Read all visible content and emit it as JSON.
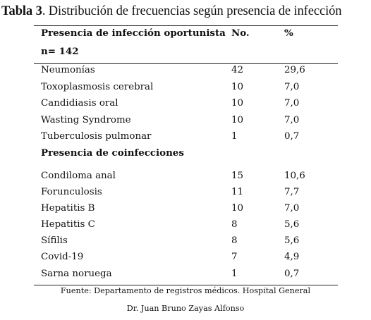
{
  "title": {
    "bold": "Tabla 3",
    "rest": ". Distribución de frecuencias según presencia de infección"
  },
  "table": {
    "header": {
      "col1_line1": "Presencia de infección oportunista",
      "col1_line2": "n= 142",
      "col2": "No.",
      "col3": "%"
    },
    "section1_rows": [
      {
        "label": "Neumonías",
        "no": "42",
        "pct": "29,6"
      },
      {
        "label": "Toxoplasmosis cerebral",
        "no": "10",
        "pct": "7,0"
      },
      {
        "label": "Candidiasis oral",
        "no": "10",
        "pct": "7,0"
      },
      {
        "label": "Wasting Syndrome",
        "no": "10",
        "pct": "7,0"
      },
      {
        "label": "Tuberculosis pulmonar",
        "no": "1",
        "pct": "0,7"
      }
    ],
    "section2_title": "Presencia de coinfecciones",
    "section2_rows": [
      {
        "label": "Condiloma anal",
        "no": "15",
        "pct": "10,6"
      },
      {
        "label": "Forunculosis",
        "no": "11",
        "pct": "7,7"
      },
      {
        "label": "Hepatitis B",
        "no": "10",
        "pct": "7,0"
      },
      {
        "label": "Hepatitis C",
        "no": "8",
        "pct": "5,6"
      },
      {
        "label": "Sífilis",
        "no": "8",
        "pct": "5,6"
      },
      {
        "label": "Covid-19",
        "no": "7",
        "pct": "4,9"
      },
      {
        "label": "Sarna noruega",
        "no": "1",
        "pct": "0,7"
      }
    ]
  },
  "source": {
    "line1": "Fuente: Departamento de registros médicos. Hospital General",
    "line2": "Dr. Juan Bruno Zayas Alfonso"
  }
}
